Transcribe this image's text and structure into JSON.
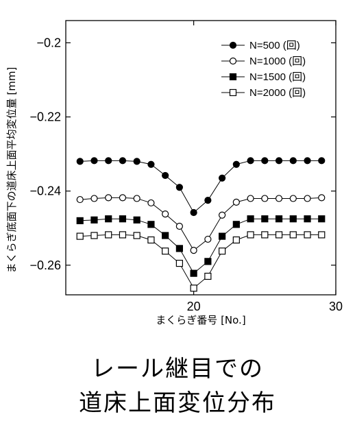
{
  "chart_data": {
    "type": "line",
    "xlabel": "まくらぎ番号 [No.]",
    "ylabel": "まくらぎ底面下の道床上面平均変位量 [mm]",
    "xlim": [
      11,
      30
    ],
    "ylim": [
      -0.268,
      -0.194
    ],
    "xticks": [
      20,
      30
    ],
    "xtick_labels": [
      "20",
      "30"
    ],
    "yticks": [
      -0.2,
      -0.22,
      -0.24,
      -0.26
    ],
    "ytick_labels": [
      "-0.2",
      "-0.22",
      "-0.24",
      "-0.26"
    ],
    "grid": false,
    "legend_position": "top-right",
    "x": [
      12,
      13,
      14,
      15,
      16,
      17,
      18,
      19,
      20,
      21,
      22,
      23,
      24,
      25,
      26,
      27,
      28,
      29
    ],
    "series": [
      {
        "name": "N=500 (回)",
        "marker": "filled-circle",
        "values": [
          -0.232,
          -0.2318,
          -0.2318,
          -0.2318,
          -0.232,
          -0.2328,
          -0.2358,
          -0.239,
          -0.2458,
          -0.2425,
          -0.2365,
          -0.2328,
          -0.2318,
          -0.2318,
          -0.2318,
          -0.2318,
          -0.2318,
          -0.2318
        ]
      },
      {
        "name": "N=1000 (回)",
        "marker": "open-circle",
        "values": [
          -0.2423,
          -0.242,
          -0.2418,
          -0.2418,
          -0.242,
          -0.2432,
          -0.2462,
          -0.2495,
          -0.256,
          -0.253,
          -0.2465,
          -0.243,
          -0.242,
          -0.242,
          -0.242,
          -0.242,
          -0.242,
          -0.2418
        ]
      },
      {
        "name": "N=1500 (回)",
        "marker": "filled-square",
        "values": [
          -0.248,
          -0.2478,
          -0.2475,
          -0.2475,
          -0.2478,
          -0.249,
          -0.252,
          -0.2555,
          -0.2622,
          -0.259,
          -0.2522,
          -0.249,
          -0.2475,
          -0.2475,
          -0.2475,
          -0.2475,
          -0.2475,
          -0.2475
        ]
      },
      {
        "name": "N=2000 (回)",
        "marker": "open-square",
        "values": [
          -0.2522,
          -0.252,
          -0.2518,
          -0.2518,
          -0.252,
          -0.2532,
          -0.2562,
          -0.2595,
          -0.2662,
          -0.263,
          -0.2562,
          -0.2532,
          -0.2518,
          -0.2518,
          -0.2518,
          -0.2518,
          -0.2518,
          -0.2518
        ]
      }
    ]
  },
  "caption": {
    "line1": "レール継目での",
    "line2": "道床上面変位分布"
  }
}
